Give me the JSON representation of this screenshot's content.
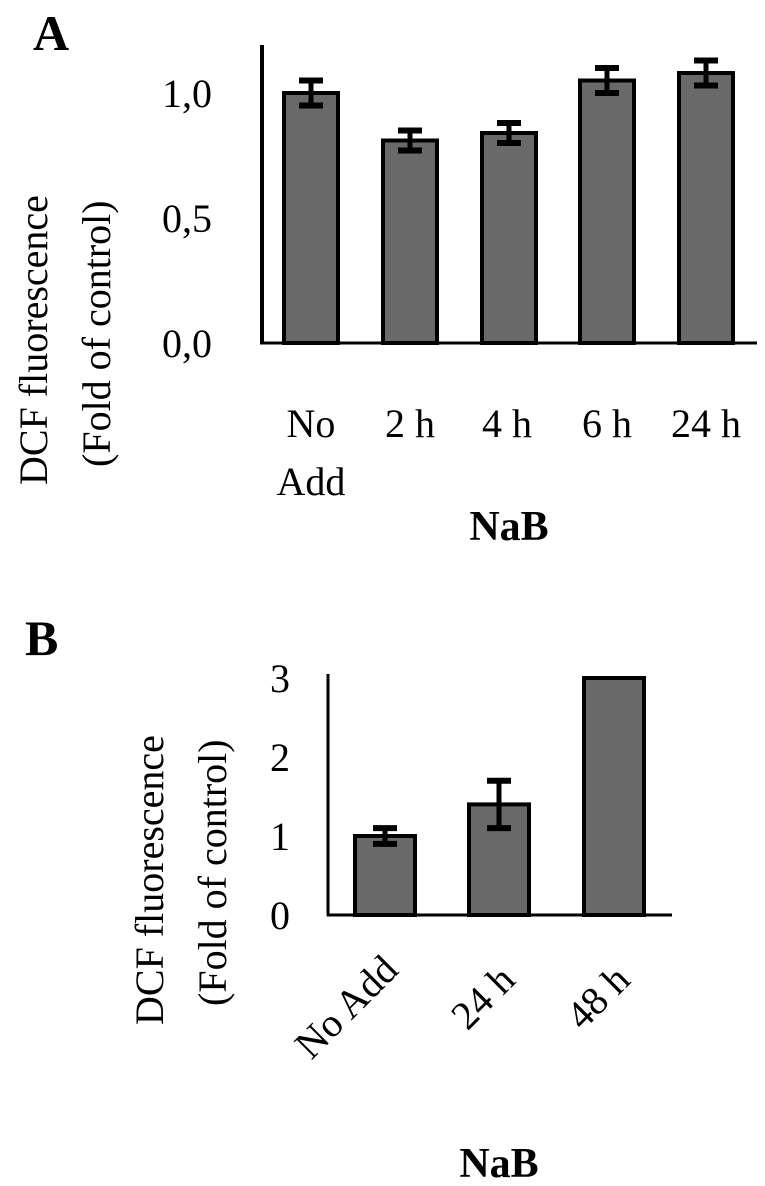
{
  "figure": {
    "panels": [
      "A",
      "B"
    ]
  },
  "chart_data": [
    {
      "type": "bar",
      "panel": "A",
      "title": "",
      "categories": [
        "No Add",
        "2 h",
        "4 h",
        "6 h",
        "24 h"
      ],
      "category_lines": [
        [
          "No",
          "Add"
        ],
        [
          "2 h"
        ],
        [
          "4 h"
        ],
        [
          "6 h"
        ],
        [
          "24 h"
        ]
      ],
      "values": [
        1.0,
        0.81,
        0.84,
        1.05,
        1.08
      ],
      "errors": [
        0.05,
        0.04,
        0.04,
        0.05,
        0.05
      ],
      "xlabel": "NaB",
      "ylabel": "DCF fluorescence (Fold of control)",
      "ylabel_lines": [
        "DCF fluorescence",
        "(Fold of control)"
      ],
      "yticks": [
        0.0,
        0.5,
        1.0
      ],
      "ytick_labels": [
        "0,0",
        "0,5",
        "1,0"
      ],
      "ylim": [
        0,
        1.2
      ],
      "grid": false,
      "legend": null,
      "bar_color": "#696969"
    },
    {
      "type": "bar",
      "panel": "B",
      "title": "",
      "categories": [
        "No Add",
        "24 h",
        "48 h"
      ],
      "values": [
        1.0,
        1.4,
        3.0
      ],
      "errors": [
        0.1,
        0.3,
        0.0
      ],
      "value_notes": [
        "",
        "",
        "bar exceeds axis top (clipped at 3)"
      ],
      "xlabel": "NaB",
      "ylabel": "DCF fluorescence (Fold of control)",
      "ylabel_lines": [
        "DCF fluorescence",
        "(Fold of control)"
      ],
      "yticks": [
        0,
        1,
        2,
        3
      ],
      "ytick_labels": [
        "0",
        "1",
        "2",
        "3"
      ],
      "ylim": [
        0,
        3
      ],
      "xtick_rotation": -45,
      "grid": false,
      "legend": null,
      "bar_color": "#696969"
    }
  ]
}
